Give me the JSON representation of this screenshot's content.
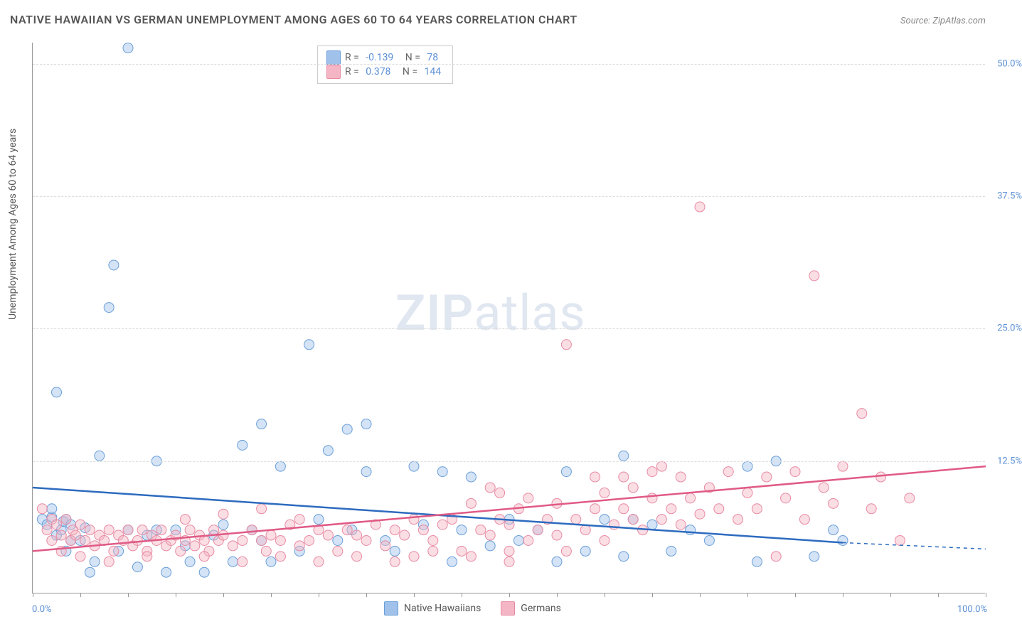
{
  "title": "NATIVE HAWAIIAN VS GERMAN UNEMPLOYMENT AMONG AGES 60 TO 64 YEARS CORRELATION CHART",
  "source": "Source: ZipAtlas.com",
  "ylabel": "Unemployment Among Ages 60 to 64 years",
  "watermark_zip": "ZIP",
  "watermark_atlas": "atlas",
  "chart": {
    "type": "scatter",
    "background_color": "#ffffff",
    "grid_color": "#dddddd",
    "axis_color": "#999999",
    "xlim": [
      0,
      100
    ],
    "ylim": [
      0,
      52
    ],
    "yticks": [
      12.5,
      25.0,
      37.5,
      50.0
    ],
    "ytick_labels": [
      "12.5%",
      "25.0%",
      "37.5%",
      "50.0%"
    ],
    "xtick_minor_step": 5,
    "xtick_left": "0.0%",
    "xtick_right": "100.0%",
    "marker_radius": 7,
    "marker_opacity": 0.45,
    "line_width": 2.5,
    "series": [
      {
        "name": "Native Hawaiians",
        "color_fill": "#9fc1ea",
        "color_stroke": "#6a9fd8",
        "line_color": "#2d6bbf",
        "R": "-0.139",
        "N": "78",
        "regression": {
          "x1": 0,
          "y1": 10.0,
          "x2": 85,
          "y2": 4.8,
          "dash_to_x": 100,
          "dash_to_y": 4.2
        },
        "points": [
          [
            1,
            7
          ],
          [
            1.5,
            6.5
          ],
          [
            2,
            7.2
          ],
          [
            2,
            8
          ],
          [
            2.5,
            5.5
          ],
          [
            2.5,
            19
          ],
          [
            3,
            6
          ],
          [
            3.2,
            6.8
          ],
          [
            3.5,
            4
          ],
          [
            3.5,
            7
          ],
          [
            4,
            6.5
          ],
          [
            4,
            5
          ],
          [
            5,
            5
          ],
          [
            5.5,
            6.2
          ],
          [
            6,
            2
          ],
          [
            6.5,
            3
          ],
          [
            7,
            13
          ],
          [
            8,
            27
          ],
          [
            8.5,
            31
          ],
          [
            9,
            4
          ],
          [
            10,
            6
          ],
          [
            10,
            51.5
          ],
          [
            11,
            2.5
          ],
          [
            12,
            5.5
          ],
          [
            13,
            6
          ],
          [
            13,
            12.5
          ],
          [
            14,
            2
          ],
          [
            15,
            6
          ],
          [
            16,
            4.5
          ],
          [
            16.5,
            3
          ],
          [
            18,
            2
          ],
          [
            19,
            5.5
          ],
          [
            20,
            6.5
          ],
          [
            21,
            3
          ],
          [
            22,
            14
          ],
          [
            23,
            6
          ],
          [
            24,
            5
          ],
          [
            24,
            16
          ],
          [
            25,
            3
          ],
          [
            26,
            12
          ],
          [
            28,
            4
          ],
          [
            29,
            23.5
          ],
          [
            30,
            7
          ],
          [
            31,
            13.5
          ],
          [
            32,
            5
          ],
          [
            33,
            15.5
          ],
          [
            33.5,
            6
          ],
          [
            35,
            11.5
          ],
          [
            35,
            16
          ],
          [
            37,
            5
          ],
          [
            38,
            4
          ],
          [
            40,
            12
          ],
          [
            41,
            6.5
          ],
          [
            43,
            11.5
          ],
          [
            44,
            3
          ],
          [
            45,
            6
          ],
          [
            46,
            11
          ],
          [
            48,
            4.5
          ],
          [
            50,
            7
          ],
          [
            51,
            5
          ],
          [
            53,
            6
          ],
          [
            55,
            3
          ],
          [
            56,
            11.5
          ],
          [
            58,
            4
          ],
          [
            60,
            7
          ],
          [
            62,
            3.5
          ],
          [
            62,
            13
          ],
          [
            63,
            7
          ],
          [
            65,
            6.5
          ],
          [
            67,
            4
          ],
          [
            69,
            6
          ],
          [
            71,
            5
          ],
          [
            75,
            12
          ],
          [
            76,
            3
          ],
          [
            78,
            12.5
          ],
          [
            82,
            3.5
          ],
          [
            84,
            6
          ],
          [
            85,
            5
          ]
        ]
      },
      {
        "name": "Germans",
        "color_fill": "#f4b6c4",
        "color_stroke": "#e88aa3",
        "line_color": "#e05a85",
        "R": "0.378",
        "N": "144",
        "regression": {
          "x1": 0,
          "y1": 4.0,
          "x2": 100,
          "y2": 12.0
        },
        "points": [
          [
            1,
            8
          ],
          [
            1.5,
            6
          ],
          [
            2,
            7
          ],
          [
            2,
            5
          ],
          [
            2.5,
            6.5
          ],
          [
            3,
            5.5
          ],
          [
            3.5,
            7
          ],
          [
            4,
            5
          ],
          [
            4.2,
            6
          ],
          [
            4.5,
            5.5
          ],
          [
            5,
            6.5
          ],
          [
            5.5,
            5
          ],
          [
            6,
            6
          ],
          [
            6.5,
            4.5
          ],
          [
            7,
            5.5
          ],
          [
            7.5,
            5
          ],
          [
            8,
            6
          ],
          [
            8.5,
            4
          ],
          [
            9,
            5.5
          ],
          [
            9.5,
            5
          ],
          [
            10,
            6
          ],
          [
            10.5,
            4.5
          ],
          [
            11,
            5
          ],
          [
            11.5,
            6
          ],
          [
            12,
            4
          ],
          [
            12.5,
            5.5
          ],
          [
            13,
            5
          ],
          [
            13.5,
            6
          ],
          [
            14,
            4.5
          ],
          [
            14.5,
            5
          ],
          [
            15,
            5.5
          ],
          [
            15.5,
            4
          ],
          [
            16,
            5
          ],
          [
            16.5,
            6
          ],
          [
            17,
            4.5
          ],
          [
            17.5,
            5.5
          ],
          [
            18,
            5
          ],
          [
            18.5,
            4
          ],
          [
            19,
            6
          ],
          [
            19.5,
            5
          ],
          [
            20,
            5.5
          ],
          [
            21,
            4.5
          ],
          [
            22,
            5
          ],
          [
            23,
            6
          ],
          [
            24,
            5
          ],
          [
            24.5,
            4
          ],
          [
            25,
            5.5
          ],
          [
            26,
            5
          ],
          [
            27,
            6.5
          ],
          [
            28,
            4.5
          ],
          [
            29,
            5
          ],
          [
            30,
            6
          ],
          [
            31,
            5.5
          ],
          [
            32,
            4
          ],
          [
            33,
            6
          ],
          [
            34,
            5.5
          ],
          [
            35,
            5
          ],
          [
            36,
            6.5
          ],
          [
            37,
            4.5
          ],
          [
            38,
            6
          ],
          [
            39,
            5.5
          ],
          [
            40,
            3.5
          ],
          [
            40,
            7
          ],
          [
            41,
            6
          ],
          [
            42,
            5
          ],
          [
            43,
            6.5
          ],
          [
            44,
            7
          ],
          [
            45,
            4
          ],
          [
            46,
            8.5
          ],
          [
            47,
            6
          ],
          [
            48,
            5.5
          ],
          [
            48,
            10
          ],
          [
            49,
            7
          ],
          [
            49,
            9.5
          ],
          [
            50,
            4
          ],
          [
            50,
            6.5
          ],
          [
            51,
            8
          ],
          [
            52,
            5
          ],
          [
            52,
            9
          ],
          [
            53,
            6
          ],
          [
            54,
            7
          ],
          [
            55,
            5.5
          ],
          [
            55,
            8.5
          ],
          [
            56,
            4
          ],
          [
            56,
            23.5
          ],
          [
            57,
            7
          ],
          [
            58,
            6
          ],
          [
            59,
            8
          ],
          [
            59,
            11
          ],
          [
            60,
            5
          ],
          [
            60,
            9.5
          ],
          [
            61,
            6.5
          ],
          [
            62,
            8
          ],
          [
            62,
            11
          ],
          [
            63,
            7
          ],
          [
            63,
            10
          ],
          [
            64,
            6
          ],
          [
            65,
            9
          ],
          [
            65,
            11.5
          ],
          [
            66,
            7
          ],
          [
            66,
            12
          ],
          [
            67,
            8
          ],
          [
            68,
            6.5
          ],
          [
            68,
            11
          ],
          [
            69,
            9
          ],
          [
            70,
            7.5
          ],
          [
            70,
            36.5
          ],
          [
            71,
            10
          ],
          [
            72,
            8
          ],
          [
            73,
            11.5
          ],
          [
            74,
            7
          ],
          [
            75,
            9.5
          ],
          [
            76,
            8
          ],
          [
            77,
            11
          ],
          [
            78,
            3.5
          ],
          [
            79,
            9
          ],
          [
            80,
            11.5
          ],
          [
            81,
            7
          ],
          [
            82,
            30
          ],
          [
            83,
            10
          ],
          [
            84,
            8.5
          ],
          [
            85,
            12
          ],
          [
            87,
            17
          ],
          [
            88,
            8
          ],
          [
            89,
            11
          ],
          [
            91,
            5
          ],
          [
            92,
            9
          ],
          [
            3,
            4
          ],
          [
            5,
            3.5
          ],
          [
            8,
            3
          ],
          [
            12,
            3.5
          ],
          [
            18,
            3.5
          ],
          [
            22,
            3
          ],
          [
            26,
            3.5
          ],
          [
            30,
            3
          ],
          [
            34,
            3.5
          ],
          [
            38,
            3
          ],
          [
            42,
            4
          ],
          [
            46,
            3.5
          ],
          [
            50,
            3
          ],
          [
            16,
            7
          ],
          [
            20,
            7.5
          ],
          [
            24,
            8
          ],
          [
            28,
            7
          ]
        ]
      }
    ]
  },
  "bottom_legend": [
    {
      "label": "Native Hawaiians",
      "fill": "#9fc1ea",
      "stroke": "#6a9fd8"
    },
    {
      "label": "Germans",
      "fill": "#f4b6c4",
      "stroke": "#e88aa3"
    }
  ]
}
